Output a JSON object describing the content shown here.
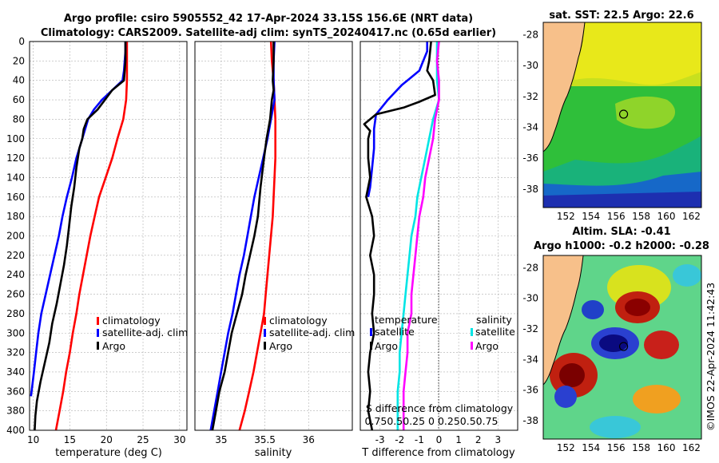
{
  "figure": {
    "title_line1": "Argo profile: csiro 5905552_42 17-Apr-2024 33.15S 156.6E (NRT data)",
    "title_line2": "Climatology: CARS2009. Satellite-adj clim: synTS_20240417.nc (0.65d earlier)",
    "footer": "©IMOS 22-Apr-2024 11:42:43"
  },
  "colors": {
    "climatology": "#ff0000",
    "satellite": "#0000ff",
    "argo": "#000000",
    "sat_salinity": "#00e5e5",
    "argo_salinity": "#ff00ff",
    "land": "#f7c08a",
    "grid": "#b0b0b0"
  },
  "chart_data": [
    {
      "type": "line",
      "id": "temperature",
      "xlabel": "temperature (deg C)",
      "ylabel": "",
      "xlim": [
        9.5,
        31
      ],
      "ylim": [
        400,
        0
      ],
      "y_reversed": true,
      "grid": true,
      "xticks": [
        10,
        15,
        20,
        25,
        30
      ],
      "yticks": [
        0,
        20,
        40,
        60,
        80,
        100,
        120,
        140,
        160,
        180,
        200,
        220,
        240,
        260,
        280,
        300,
        320,
        340,
        360,
        380,
        400
      ],
      "legend": {
        "position": "bottom-right",
        "entries": [
          "climatology",
          "satellite-adj. clim",
          "Argo"
        ]
      },
      "series": [
        {
          "name": "climatology",
          "color_key": "climatology",
          "points": [
            [
              22.8,
              0
            ],
            [
              22.8,
              20
            ],
            [
              22.8,
              40
            ],
            [
              22.7,
              60
            ],
            [
              22.3,
              80
            ],
            [
              21.5,
              100
            ],
            [
              20.8,
              120
            ],
            [
              19.9,
              140
            ],
            [
              19.0,
              160
            ],
            [
              18.4,
              180
            ],
            [
              17.8,
              200
            ],
            [
              17.3,
              220
            ],
            [
              16.8,
              240
            ],
            [
              16.3,
              260
            ],
            [
              15.9,
              280
            ],
            [
              15.4,
              300
            ],
            [
              15.0,
              320
            ],
            [
              14.5,
              340
            ],
            [
              14.1,
              360
            ],
            [
              13.6,
              380
            ],
            [
              13.1,
              400
            ]
          ]
        },
        {
          "name": "satellite-adj. clim",
          "color_key": "satellite",
          "points": [
            [
              22.6,
              0
            ],
            [
              22.6,
              10
            ],
            [
              22.5,
              20
            ],
            [
              22.4,
              30
            ],
            [
              22.2,
              40
            ],
            [
              20.8,
              50
            ],
            [
              19.4,
              60
            ],
            [
              18.3,
              70
            ],
            [
              17.5,
              80
            ],
            [
              16.7,
              100
            ],
            [
              15.9,
              120
            ],
            [
              15.3,
              140
            ],
            [
              14.6,
              160
            ],
            [
              14.0,
              180
            ],
            [
              13.5,
              200
            ],
            [
              12.9,
              220
            ],
            [
              12.3,
              240
            ],
            [
              11.7,
              260
            ],
            [
              11.1,
              280
            ],
            [
              10.7,
              300
            ],
            [
              10.4,
              320
            ],
            [
              10.1,
              340
            ],
            [
              9.7,
              365
            ]
          ]
        },
        {
          "name": "Argo",
          "color_key": "argo",
          "points": [
            [
              22.6,
              0
            ],
            [
              22.6,
              20
            ],
            [
              22.5,
              30
            ],
            [
              22.4,
              40
            ],
            [
              20.8,
              50
            ],
            [
              19.8,
              60
            ],
            [
              18.8,
              70
            ],
            [
              17.4,
              80
            ],
            [
              16.9,
              90
            ],
            [
              16.7,
              100
            ],
            [
              16.3,
              110
            ],
            [
              15.9,
              130
            ],
            [
              15.6,
              150
            ],
            [
              15.2,
              170
            ],
            [
              14.9,
              190
            ],
            [
              14.6,
              210
            ],
            [
              14.2,
              230
            ],
            [
              13.7,
              250
            ],
            [
              13.2,
              270
            ],
            [
              12.6,
              290
            ],
            [
              12.2,
              310
            ],
            [
              11.6,
              330
            ],
            [
              11.0,
              350
            ],
            [
              10.5,
              370
            ],
            [
              10.3,
              385
            ],
            [
              10.2,
              400
            ]
          ]
        }
      ]
    },
    {
      "type": "line",
      "id": "salinity",
      "xlabel": "salinity",
      "ylabel": "",
      "xlim": [
        34.7,
        36.5
      ],
      "ylim": [
        400,
        0
      ],
      "y_reversed": true,
      "grid": true,
      "xticks": [
        35,
        35.5,
        36
      ],
      "xtick_labels": [
        "35",
        "35.5",
        "36"
      ],
      "legend": {
        "position": "bottom-right",
        "entries": [
          "climatology",
          "satellite-adj. clim",
          "Argo"
        ]
      },
      "series": [
        {
          "name": "climatology",
          "color_key": "climatology",
          "points": [
            [
              35.57,
              0
            ],
            [
              35.58,
              20
            ],
            [
              35.6,
              40
            ],
            [
              35.61,
              60
            ],
            [
              35.62,
              80
            ],
            [
              35.62,
              100
            ],
            [
              35.62,
              120
            ],
            [
              35.61,
              140
            ],
            [
              35.6,
              160
            ],
            [
              35.59,
              180
            ],
            [
              35.57,
              200
            ],
            [
              35.55,
              220
            ],
            [
              35.53,
              240
            ],
            [
              35.51,
              260
            ],
            [
              35.49,
              280
            ],
            [
              35.45,
              300
            ],
            [
              35.41,
              320
            ],
            [
              35.37,
              340
            ],
            [
              35.32,
              360
            ],
            [
              35.27,
              380
            ],
            [
              35.21,
              400
            ]
          ]
        },
        {
          "name": "satellite-adj. clim",
          "color_key": "satellite",
          "points": [
            [
              35.61,
              0
            ],
            [
              35.6,
              20
            ],
            [
              35.6,
              40
            ],
            [
              35.61,
              60
            ],
            [
              35.57,
              80
            ],
            [
              35.53,
              100
            ],
            [
              35.48,
              120
            ],
            [
              35.43,
              140
            ],
            [
              35.38,
              160
            ],
            [
              35.34,
              180
            ],
            [
              35.3,
              200
            ],
            [
              35.26,
              220
            ],
            [
              35.21,
              240
            ],
            [
              35.17,
              260
            ],
            [
              35.13,
              280
            ],
            [
              35.08,
              300
            ],
            [
              35.04,
              320
            ],
            [
              35.0,
              340
            ],
            [
              34.96,
              360
            ],
            [
              34.92,
              380
            ],
            [
              34.88,
              400
            ]
          ]
        },
        {
          "name": "Argo",
          "color_key": "argo",
          "points": [
            [
              35.6,
              0
            ],
            [
              35.6,
              20
            ],
            [
              35.59,
              40
            ],
            [
              35.6,
              50
            ],
            [
              35.58,
              60
            ],
            [
              35.56,
              80
            ],
            [
              35.52,
              100
            ],
            [
              35.49,
              120
            ],
            [
              35.45,
              150
            ],
            [
              35.42,
              180
            ],
            [
              35.38,
              200
            ],
            [
              35.33,
              220
            ],
            [
              35.28,
              240
            ],
            [
              35.24,
              260
            ],
            [
              35.18,
              280
            ],
            [
              35.12,
              300
            ],
            [
              35.08,
              320
            ],
            [
              35.04,
              340
            ],
            [
              34.98,
              360
            ],
            [
              34.94,
              380
            ],
            [
              34.9,
              400
            ]
          ]
        }
      ]
    },
    {
      "type": "line",
      "id": "difference",
      "xlabel": "T difference from climatology",
      "xlabel_top": "S difference from climatology",
      "xlim": [
        -4,
        4
      ],
      "ylim": [
        400,
        0
      ],
      "y_reversed": true,
      "grid": true,
      "xticks": [
        -3,
        -2,
        -1,
        0,
        1,
        2,
        3
      ],
      "s_tick_labels": "0.750.50.25  0  0.250.50.75",
      "legend": {
        "position": "bottom",
        "temperature_heading": "temperature",
        "salinity_heading": "salinity",
        "temperature_entries": [
          "satellite",
          "Argo"
        ],
        "salinity_entries": [
          "satellite",
          "Argo"
        ]
      },
      "series": [
        {
          "name": "T satellite",
          "color_key": "satellite",
          "points": [
            [
              -0.6,
              0
            ],
            [
              -0.6,
              10
            ],
            [
              -0.8,
              20
            ],
            [
              -1.0,
              30
            ],
            [
              -1.9,
              45
            ],
            [
              -2.6,
              60
            ],
            [
              -3.2,
              75
            ],
            [
              -3.3,
              90
            ],
            [
              -3.3,
              110
            ],
            [
              -3.4,
              130
            ],
            [
              -3.5,
              150
            ],
            [
              -3.6,
              160
            ]
          ]
        },
        {
          "name": "T Argo",
          "color_key": "argo",
          "points": [
            [
              -0.4,
              0
            ],
            [
              -0.5,
              20
            ],
            [
              -0.6,
              30
            ],
            [
              -0.3,
              40
            ],
            [
              -0.2,
              55
            ],
            [
              -1.0,
              62
            ],
            [
              -1.8,
              68
            ],
            [
              -3.2,
              75
            ],
            [
              -3.8,
              85
            ],
            [
              -3.5,
              92
            ],
            [
              -3.6,
              100
            ],
            [
              -3.6,
              120
            ],
            [
              -3.5,
              140
            ],
            [
              -3.7,
              160
            ],
            [
              -3.4,
              180
            ],
            [
              -3.3,
              200
            ],
            [
              -3.5,
              220
            ],
            [
              -3.3,
              240
            ],
            [
              -3.3,
              260
            ],
            [
              -3.4,
              280
            ],
            [
              -3.3,
              300
            ],
            [
              -3.5,
              320
            ],
            [
              -3.6,
              340
            ],
            [
              -3.5,
              360
            ],
            [
              -3.6,
              380
            ],
            [
              -3.4,
              400
            ]
          ]
        },
        {
          "name": "S satellite",
          "color_key": "sat_salinity",
          "points": [
            [
              -0.1,
              0
            ],
            [
              -0.1,
              20
            ],
            [
              -0.1,
              40
            ],
            [
              0.0,
              60
            ],
            [
              -0.3,
              80
            ],
            [
              -0.5,
              100
            ],
            [
              -0.7,
              120
            ],
            [
              -0.9,
              140
            ],
            [
              -1.1,
              160
            ],
            [
              -1.2,
              180
            ],
            [
              -1.4,
              200
            ],
            [
              -1.5,
              220
            ],
            [
              -1.6,
              240
            ],
            [
              -1.7,
              260
            ],
            [
              -1.8,
              280
            ],
            [
              -1.9,
              300
            ],
            [
              -2.0,
              320
            ],
            [
              -2.0,
              340
            ],
            [
              -2.1,
              360
            ],
            [
              -2.1,
              380
            ],
            [
              -2.1,
              400
            ]
          ]
        },
        {
          "name": "S Argo",
          "color_key": "argo_salinity",
          "points": [
            [
              0.0,
              0
            ],
            [
              -0.1,
              20
            ],
            [
              0.0,
              40
            ],
            [
              0.0,
              60
            ],
            [
              -0.2,
              80
            ],
            [
              -0.3,
              100
            ],
            [
              -0.5,
              120
            ],
            [
              -0.7,
              140
            ],
            [
              -0.8,
              160
            ],
            [
              -1.0,
              180
            ],
            [
              -1.1,
              200
            ],
            [
              -1.2,
              220
            ],
            [
              -1.3,
              240
            ],
            [
              -1.4,
              260
            ],
            [
              -1.4,
              280
            ],
            [
              -1.6,
              300
            ],
            [
              -1.6,
              320
            ],
            [
              -1.7,
              340
            ],
            [
              -1.8,
              360
            ],
            [
              -1.8,
              380
            ],
            [
              -1.8,
              400
            ]
          ]
        }
      ]
    },
    {
      "type": "heatmap",
      "id": "sst_map",
      "title": "sat. SST: 22.5 Argo: 22.6",
      "xticks": [
        152,
        154,
        156,
        158,
        160,
        162
      ],
      "yticks": [
        -28,
        -30,
        -32,
        -34,
        -36,
        -38
      ],
      "xlim": [
        150.2,
        162.8
      ],
      "ylim": [
        -39.2,
        -27.2
      ],
      "marker": {
        "lon": 156.6,
        "lat": -33.15
      }
    },
    {
      "type": "heatmap",
      "id": "sla_map",
      "title_line1": "Altim. SLA: -0.41",
      "title_line2": "Argo h1000: -0.2 h2000: -0.28",
      "xticks": [
        152,
        154,
        156,
        158,
        160,
        162
      ],
      "yticks": [
        -28,
        -30,
        -32,
        -34,
        -36,
        -38
      ],
      "xlim": [
        150.2,
        162.8
      ],
      "ylim": [
        -39.2,
        -27.2
      ],
      "marker": {
        "lon": 156.6,
        "lat": -33.15
      }
    }
  ]
}
